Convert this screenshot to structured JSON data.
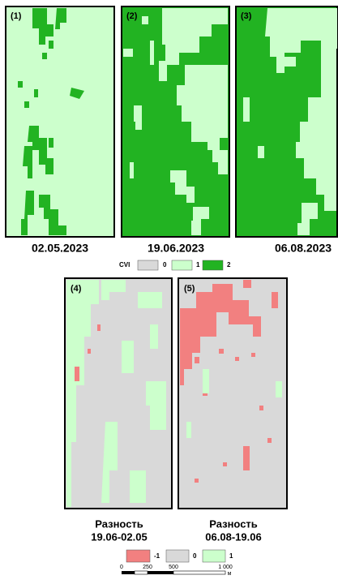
{
  "top_panels": [
    {
      "label": "(1)",
      "date": "02.05.2023"
    },
    {
      "label": "(2)",
      "date": "19.06.2023"
    },
    {
      "label": "(3)",
      "date": "06.08.2023"
    }
  ],
  "cvi_legend": {
    "title": "CVI",
    "items": [
      "0",
      "1",
      "2"
    ]
  },
  "bottom_panels": [
    {
      "label": "(4)",
      "caption": [
        "Разность",
        "19.06-02.05"
      ]
    },
    {
      "label": "(5)",
      "caption": [
        "Разность",
        "06.08-19.06"
      ]
    }
  ],
  "diff_legend": {
    "items": [
      "-1",
      "0",
      "1"
    ]
  },
  "scale_bar": {
    "labels": [
      "0",
      "250",
      "500",
      "1 000"
    ],
    "unit": "м"
  }
}
